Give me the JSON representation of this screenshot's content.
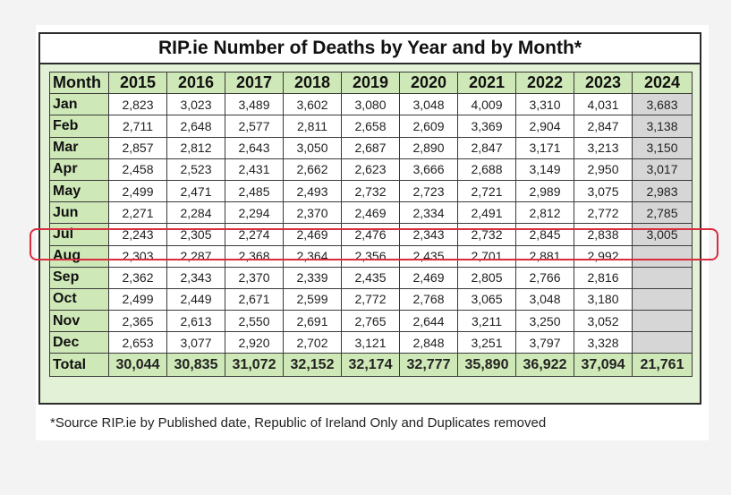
{
  "title": "RIP.ie Number of  Deaths by Year and by Month*",
  "header": {
    "month_label": "Month",
    "years": [
      "2015",
      "2016",
      "2017",
      "2018",
      "2019",
      "2020",
      "2021",
      "2022",
      "2023",
      "2024"
    ]
  },
  "rows": [
    {
      "month": "Jan",
      "values": [
        "2,823",
        "3,023",
        "3,489",
        "3,602",
        "3,080",
        "3,048",
        "4,009",
        "3,310",
        "4,031",
        "3,683"
      ]
    },
    {
      "month": "Feb",
      "values": [
        "2,711",
        "2,648",
        "2,577",
        "2,811",
        "2,658",
        "2,609",
        "3,369",
        "2,904",
        "2,847",
        "3,138"
      ]
    },
    {
      "month": "Mar",
      "values": [
        "2,857",
        "2,812",
        "2,643",
        "3,050",
        "2,687",
        "2,890",
        "2,847",
        "3,171",
        "3,213",
        "3,150"
      ]
    },
    {
      "month": "Apr",
      "values": [
        "2,458",
        "2,523",
        "2,431",
        "2,662",
        "2,623",
        "3,666",
        "2,688",
        "3,149",
        "2,950",
        "3,017"
      ]
    },
    {
      "month": "May",
      "values": [
        "2,499",
        "2,471",
        "2,485",
        "2,493",
        "2,732",
        "2,723",
        "2,721",
        "2,989",
        "3,075",
        "2,983"
      ]
    },
    {
      "month": "Jun",
      "values": [
        "2,271",
        "2,284",
        "2,294",
        "2,370",
        "2,469",
        "2,334",
        "2,491",
        "2,812",
        "2,772",
        "2,785"
      ]
    },
    {
      "month": "Jul",
      "values": [
        "2,243",
        "2,305",
        "2,274",
        "2,469",
        "2,476",
        "2,343",
        "2,732",
        "2,845",
        "2,838",
        "3,005"
      ]
    },
    {
      "month": "Aug",
      "values": [
        "2,303",
        "2,287",
        "2,368",
        "2,364",
        "2,356",
        "2,435",
        "2,701",
        "2,881",
        "2,992",
        ""
      ]
    },
    {
      "month": "Sep",
      "values": [
        "2,362",
        "2,343",
        "2,370",
        "2,339",
        "2,435",
        "2,469",
        "2,805",
        "2,766",
        "2,816",
        ""
      ]
    },
    {
      "month": "Oct",
      "values": [
        "2,499",
        "2,449",
        "2,671",
        "2,599",
        "2,772",
        "2,768",
        "3,065",
        "3,048",
        "3,180",
        ""
      ]
    },
    {
      "month": "Nov",
      "values": [
        "2,365",
        "2,613",
        "2,550",
        "2,691",
        "2,765",
        "2,644",
        "3,211",
        "3,250",
        "3,052",
        ""
      ]
    },
    {
      "month": "Dec",
      "values": [
        "2,653",
        "3,077",
        "2,920",
        "2,702",
        "3,121",
        "2,848",
        "3,251",
        "3,797",
        "3,328",
        ""
      ]
    }
  ],
  "total": {
    "label": "Total",
    "values": [
      "30,044",
      "30,835",
      "31,072",
      "32,152",
      "32,174",
      "32,777",
      "35,890",
      "36,922",
      "37,094",
      "21,761"
    ]
  },
  "footnote": "*Source RIP.ie by Published date, Republic of Ireland Only and Duplicates removed",
  "colors": {
    "header_green": "#cfe8b8",
    "frame_green": "#e3f1d6",
    "partial_year_gray": "#d6d6d6",
    "highlight_red": "#d92c3c"
  }
}
